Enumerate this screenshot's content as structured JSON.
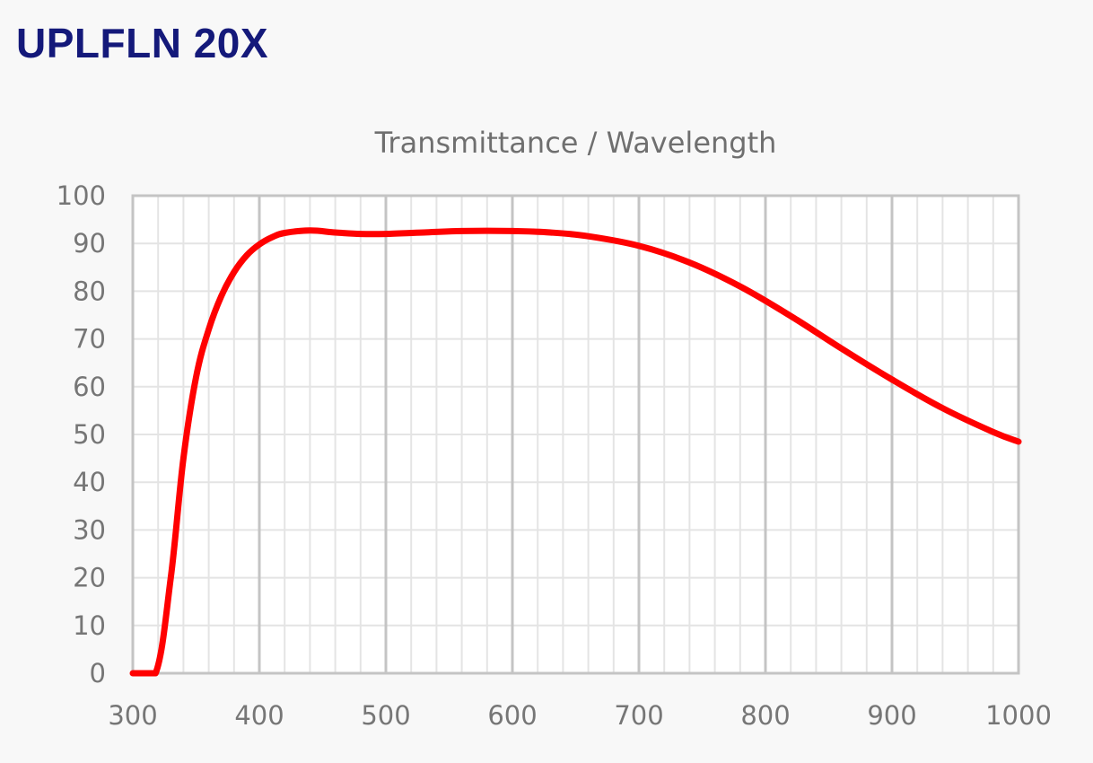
{
  "page_title": "UPLFLN 20X",
  "colors": {
    "title": "#14197a",
    "line": "#ff0000",
    "grid_minor": "#e4e4e4",
    "grid_major": "#c4c4c4"
  },
  "chart_data": {
    "type": "line",
    "title": "Transmittance / Wavelength",
    "xlabel": "",
    "ylabel": "",
    "xlim": [
      300,
      1000
    ],
    "ylim": [
      0,
      100
    ],
    "x_ticks": [
      "300",
      "400",
      "500",
      "600",
      "700",
      "800",
      "900",
      "1000"
    ],
    "y_ticks": [
      "0",
      "10",
      "20",
      "30",
      "40",
      "50",
      "60",
      "70",
      "80",
      "90",
      "100"
    ],
    "grid": true,
    "series": [
      {
        "x": [
          300,
          318,
          330,
          340,
          350,
          360,
          370,
          380,
          390,
          400,
          410,
          420,
          440,
          460,
          480,
          500,
          530,
          560,
          600,
          630,
          660,
          700,
          740,
          780,
          820,
          860,
          900,
          940,
          980,
          1000
        ],
        "y": [
          0,
          0,
          20,
          45,
          62,
          72,
          79,
          84,
          87.5,
          89.8,
          91.3,
          92.2,
          92.7,
          92.3,
          92.0,
          92.0,
          92.3,
          92.6,
          92.6,
          92.3,
          91.5,
          89.5,
          86,
          81,
          74.8,
          68,
          61.5,
          55.5,
          50.5,
          48.5
        ]
      }
    ]
  }
}
